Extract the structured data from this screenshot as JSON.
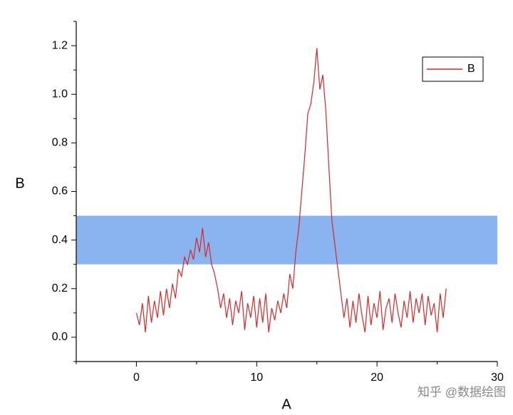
{
  "chart_data": {
    "type": "line",
    "xlabel": "A",
    "ylabel": "B",
    "xlim": [
      -5,
      30
    ],
    "ylim": [
      -0.1,
      1.3
    ],
    "xticks": [
      0,
      10,
      20,
      30
    ],
    "xminorticks": [
      -5,
      5,
      15,
      25
    ],
    "yticks": [
      {
        "value": 0,
        "label": "0.0"
      },
      0.2,
      0.4,
      0.6,
      0.8,
      {
        "value": 1,
        "label": "1.0"
      },
      1.2
    ],
    "yminorticks": [
      -0.1,
      0.1,
      0.3,
      0.5,
      0.7,
      0.9,
      1.1,
      1.3
    ],
    "band": {
      "ymin": 0.3,
      "ymax": 0.5,
      "color": "#8ab4f0"
    },
    "legend": "upper right",
    "watermark": "知乎 @数据绘图",
    "x": [
      0,
      0.25,
      0.5,
      0.75,
      1,
      1.25,
      1.5,
      1.75,
      2,
      2.25,
      2.5,
      2.75,
      3,
      3.25,
      3.5,
      3.75,
      4,
      4.25,
      4.5,
      4.75,
      5,
      5.25,
      5.5,
      5.75,
      6,
      6.25,
      6.5,
      6.75,
      7,
      7.25,
      7.5,
      7.75,
      8,
      8.25,
      8.5,
      8.75,
      9,
      9.25,
      9.5,
      9.75,
      10,
      10.25,
      10.5,
      10.75,
      11,
      11.25,
      11.5,
      11.75,
      12,
      12.25,
      12.5,
      12.75,
      13,
      13.25,
      13.5,
      13.75,
      14,
      14.25,
      14.5,
      14.75,
      15,
      15.25,
      15.5,
      15.75,
      16,
      16.25,
      16.5,
      16.75,
      17,
      17.25,
      17.5,
      17.75,
      18,
      18.25,
      18.5,
      18.75,
      19,
      19.25,
      19.5,
      19.75,
      20,
      20.25,
      20.5,
      20.75,
      21,
      21.25,
      21.5,
      21.75,
      22,
      22.25,
      22.5,
      22.75,
      23,
      23.25,
      23.5,
      23.75,
      24,
      24.25,
      24.5,
      24.75,
      25,
      25.25,
      25.5,
      25.75
    ],
    "series": [
      {
        "name": "B",
        "color": "#d62728",
        "values": [
          0.1,
          0.05,
          0.14,
          0.02,
          0.17,
          0.06,
          0.15,
          0.08,
          0.19,
          0.09,
          0.2,
          0.12,
          0.22,
          0.16,
          0.28,
          0.25,
          0.33,
          0.3,
          0.36,
          0.32,
          0.41,
          0.35,
          0.45,
          0.33,
          0.39,
          0.3,
          0.26,
          0.2,
          0.12,
          0.18,
          0.08,
          0.16,
          0.05,
          0.15,
          0.1,
          0.19,
          0.03,
          0.14,
          0.08,
          0.17,
          0.04,
          0.16,
          0.06,
          0.18,
          0.02,
          0.12,
          0.07,
          0.15,
          0.1,
          0.18,
          0.12,
          0.26,
          0.2,
          0.35,
          0.45,
          0.6,
          0.75,
          0.92,
          0.96,
          1.05,
          1.19,
          1.02,
          1.08,
          0.93,
          0.7,
          0.48,
          0.38,
          0.28,
          0.18,
          0.08,
          0.16,
          0.04,
          0.15,
          0.06,
          0.18,
          0.09,
          0.02,
          0.17,
          0.05,
          0.14,
          0.08,
          0.19,
          0.03,
          0.12,
          0.16,
          0.06,
          0.18,
          0.1,
          0.04,
          0.15,
          0.08,
          0.19,
          0.06,
          0.16,
          0.1,
          0.18,
          0.05,
          0.17,
          0.09,
          0.14,
          0.02,
          0.18,
          0.08,
          0.2
        ]
      }
    ]
  }
}
